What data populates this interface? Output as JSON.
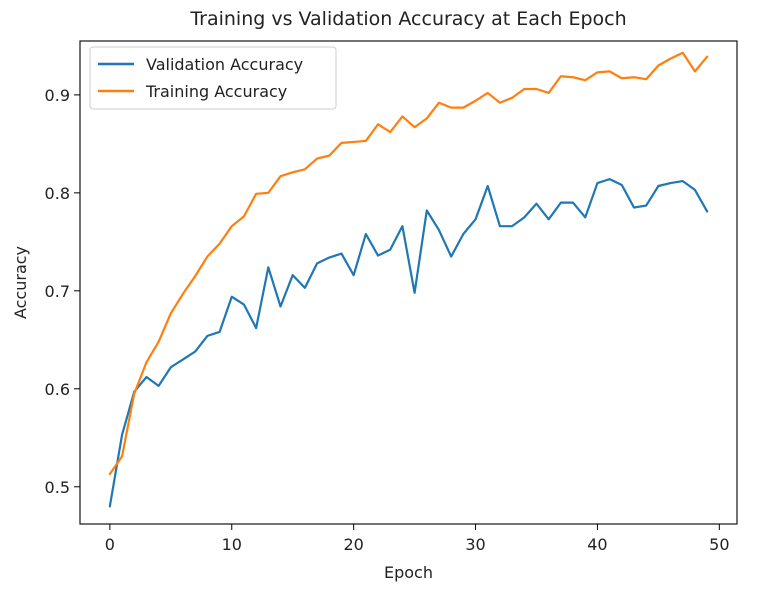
{
  "chart_data": {
    "type": "line",
    "title": "Training vs Validation Accuracy at Each Epoch",
    "xlabel": "Epoch",
    "ylabel": "Accuracy",
    "xlim": [
      -2.45,
      51.45
    ],
    "ylim": [
      0.462,
      0.955
    ],
    "xticks": [
      0,
      10,
      20,
      30,
      40,
      50
    ],
    "yticks": [
      0.5,
      0.6,
      0.7,
      0.8,
      0.9
    ],
    "ytick_labels": [
      "0.5",
      "0.6",
      "0.7",
      "0.8",
      "0.9"
    ],
    "grid": false,
    "legend_position": "top-left",
    "x": [
      0,
      1,
      2,
      3,
      4,
      5,
      6,
      7,
      8,
      9,
      10,
      11,
      12,
      13,
      14,
      15,
      16,
      17,
      18,
      19,
      20,
      21,
      22,
      23,
      24,
      25,
      26,
      27,
      28,
      29,
      30,
      31,
      32,
      33,
      34,
      35,
      36,
      37,
      38,
      39,
      40,
      41,
      42,
      43,
      44,
      45,
      46,
      47,
      48,
      49
    ],
    "series": [
      {
        "name": "Validation Accuracy",
        "color": "#1f77b4",
        "values": [
          0.48,
          0.553,
          0.597,
          0.612,
          0.603,
          0.622,
          0.63,
          0.638,
          0.654,
          0.658,
          0.694,
          0.686,
          0.662,
          0.724,
          0.684,
          0.716,
          0.703,
          0.728,
          0.734,
          0.738,
          0.716,
          0.758,
          0.736,
          0.742,
          0.766,
          0.698,
          0.782,
          0.762,
          0.735,
          0.758,
          0.773,
          0.807,
          0.766,
          0.766,
          0.775,
          0.789,
          0.773,
          0.79,
          0.79,
          0.775,
          0.81,
          0.814,
          0.808,
          0.785,
          0.787,
          0.807,
          0.81,
          0.812,
          0.803,
          0.781
        ]
      },
      {
        "name": "Training Accuracy",
        "color": "#ff7f0e",
        "values": [
          0.513,
          0.531,
          0.595,
          0.627,
          0.648,
          0.677,
          0.697,
          0.715,
          0.735,
          0.748,
          0.766,
          0.776,
          0.799,
          0.8,
          0.817,
          0.821,
          0.824,
          0.835,
          0.838,
          0.851,
          0.852,
          0.853,
          0.87,
          0.862,
          0.878,
          0.867,
          0.876,
          0.892,
          0.887,
          0.887,
          0.894,
          0.902,
          0.892,
          0.897,
          0.906,
          0.906,
          0.902,
          0.919,
          0.918,
          0.915,
          0.923,
          0.924,
          0.917,
          0.918,
          0.916,
          0.93,
          0.937,
          0.943,
          0.924,
          0.939
        ]
      }
    ]
  }
}
